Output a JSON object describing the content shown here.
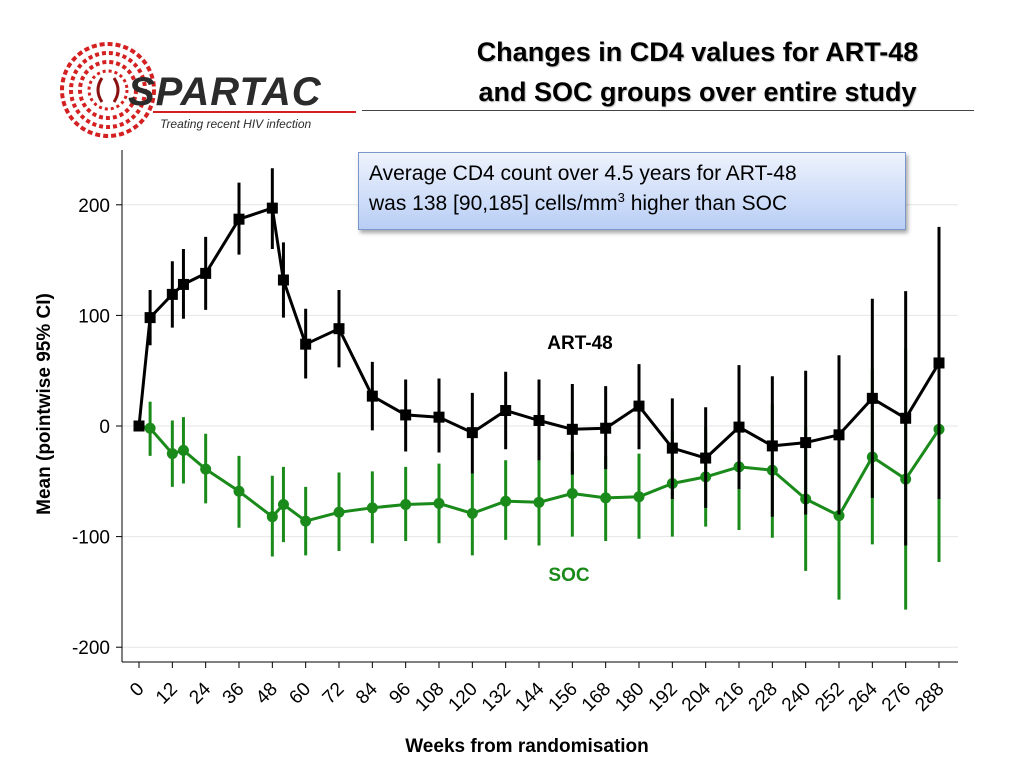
{
  "logo": {
    "name": "SPARTAC",
    "tagline": "Treating recent HIV infection",
    "color": "#d42020"
  },
  "title": {
    "line1": "Changes in CD4 values for ART-48",
    "line2": "and SOC groups over entire study"
  },
  "annotation": {
    "line1": "Average CD4 count over 4.5 years for ART-48",
    "line2_before": "was 138 [90,185] cells/mm",
    "line2_sup": "3",
    "line2_after": " higher than SOC"
  },
  "chart_data": {
    "type": "line",
    "xlabel": "Weeks from randomisation",
    "ylabel": "Mean (pointwise 95% CI)",
    "ylim": [
      -215,
      245
    ],
    "yticks": [
      -200,
      -100,
      0,
      100,
      200
    ],
    "xticks": [
      0,
      12,
      24,
      36,
      48,
      60,
      72,
      84,
      96,
      108,
      120,
      132,
      144,
      156,
      168,
      180,
      192,
      204,
      216,
      228,
      240,
      252,
      264,
      276,
      288
    ],
    "grid": true,
    "series": [
      {
        "name": "ART-48",
        "color": "#000000",
        "marker": "square",
        "points": [
          {
            "x": 0,
            "y": 0,
            "lo": 0,
            "hi": 0
          },
          {
            "x": 4,
            "y": 98,
            "lo": 73,
            "hi": 123
          },
          {
            "x": 12,
            "y": 119,
            "lo": 89,
            "hi": 149
          },
          {
            "x": 16,
            "y": 128,
            "lo": 97,
            "hi": 160
          },
          {
            "x": 24,
            "y": 138,
            "lo": 105,
            "hi": 171
          },
          {
            "x": 36,
            "y": 187,
            "lo": 155,
            "hi": 220
          },
          {
            "x": 48,
            "y": 197,
            "lo": 160,
            "hi": 233
          },
          {
            "x": 52,
            "y": 132,
            "lo": 98,
            "hi": 166
          },
          {
            "x": 60,
            "y": 74,
            "lo": 43,
            "hi": 106
          },
          {
            "x": 72,
            "y": 88,
            "lo": 53,
            "hi": 123
          },
          {
            "x": 84,
            "y": 27,
            "lo": -4,
            "hi": 58
          },
          {
            "x": 96,
            "y": 10,
            "lo": -23,
            "hi": 42
          },
          {
            "x": 108,
            "y": 8,
            "lo": -24,
            "hi": 43
          },
          {
            "x": 120,
            "y": -6,
            "lo": -43,
            "hi": 30
          },
          {
            "x": 132,
            "y": 14,
            "lo": -21,
            "hi": 49
          },
          {
            "x": 144,
            "y": 5,
            "lo": -31,
            "hi": 42
          },
          {
            "x": 156,
            "y": -3,
            "lo": -44,
            "hi": 38
          },
          {
            "x": 168,
            "y": -2,
            "lo": -39,
            "hi": 36
          },
          {
            "x": 180,
            "y": 18,
            "lo": -21,
            "hi": 56
          },
          {
            "x": 192,
            "y": -20,
            "lo": -66,
            "hi": 25
          },
          {
            "x": 204,
            "y": -29,
            "lo": -74,
            "hi": 17
          },
          {
            "x": 216,
            "y": -1,
            "lo": -57,
            "hi": 55
          },
          {
            "x": 228,
            "y": -18,
            "lo": -82,
            "hi": 45
          },
          {
            "x": 240,
            "y": -15,
            "lo": -80,
            "hi": 50
          },
          {
            "x": 252,
            "y": -8,
            "lo": -80,
            "hi": 64
          },
          {
            "x": 264,
            "y": 25,
            "lo": -65,
            "hi": 115
          },
          {
            "x": 276,
            "y": 7,
            "lo": -108,
            "hi": 122
          },
          {
            "x": 288,
            "y": 57,
            "lo": -66,
            "hi": 180
          }
        ]
      },
      {
        "name": "SOC",
        "color": "#1a8a1a",
        "marker": "circle",
        "points": [
          {
            "x": 0,
            "y": 0,
            "lo": 0,
            "hi": 0
          },
          {
            "x": 4,
            "y": -2,
            "lo": -27,
            "hi": 22
          },
          {
            "x": 12,
            "y": -25,
            "lo": -55,
            "hi": 5
          },
          {
            "x": 16,
            "y": -22,
            "lo": -52,
            "hi": 8
          },
          {
            "x": 24,
            "y": -39,
            "lo": -70,
            "hi": -7
          },
          {
            "x": 36,
            "y": -59,
            "lo": -92,
            "hi": -27
          },
          {
            "x": 48,
            "y": -82,
            "lo": -118,
            "hi": -45
          },
          {
            "x": 52,
            "y": -71,
            "lo": -105,
            "hi": -37
          },
          {
            "x": 60,
            "y": -86,
            "lo": -117,
            "hi": -55
          },
          {
            "x": 72,
            "y": -78,
            "lo": -113,
            "hi": -42
          },
          {
            "x": 84,
            "y": -74,
            "lo": -106,
            "hi": -41
          },
          {
            "x": 96,
            "y": -71,
            "lo": -104,
            "hi": -37
          },
          {
            "x": 108,
            "y": -70,
            "lo": -106,
            "hi": -34
          },
          {
            "x": 120,
            "y": -79,
            "lo": -117,
            "hi": -43
          },
          {
            "x": 132,
            "y": -68,
            "lo": -103,
            "hi": -31
          },
          {
            "x": 144,
            "y": -69,
            "lo": -108,
            "hi": -30
          },
          {
            "x": 156,
            "y": -61,
            "lo": -100,
            "hi": -23
          },
          {
            "x": 168,
            "y": -65,
            "lo": -104,
            "hi": -27
          },
          {
            "x": 180,
            "y": -64,
            "lo": -102,
            "hi": -25
          },
          {
            "x": 192,
            "y": -52,
            "lo": -100,
            "hi": -4
          },
          {
            "x": 204,
            "y": -46,
            "lo": -91,
            "hi": -1
          },
          {
            "x": 216,
            "y": -37,
            "lo": -94,
            "hi": 19
          },
          {
            "x": 228,
            "y": -40,
            "lo": -101,
            "hi": 20
          },
          {
            "x": 240,
            "y": -66,
            "lo": -131,
            "hi": -1
          },
          {
            "x": 252,
            "y": -81,
            "lo": -157,
            "hi": -5
          },
          {
            "x": 264,
            "y": -28,
            "lo": -107,
            "hi": 51
          },
          {
            "x": 276,
            "y": -48,
            "lo": -166,
            "hi": 70
          },
          {
            "x": 288,
            "y": -3,
            "lo": -123,
            "hi": 116
          }
        ]
      }
    ]
  }
}
